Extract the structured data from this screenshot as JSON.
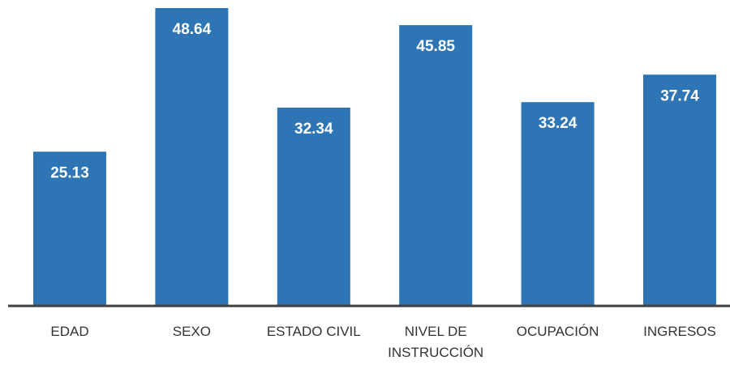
{
  "chart_data": {
    "type": "bar",
    "categories": [
      "EDAD",
      "SEXO",
      "ESTADO CIVIL",
      "NIVEL DE INSTRUCCIÓN",
      "OCUPACIÓN",
      "INGRESOS"
    ],
    "values": [
      25.13,
      48.64,
      32.34,
      45.85,
      33.24,
      37.74
    ],
    "color": "#2e75b6"
  }
}
